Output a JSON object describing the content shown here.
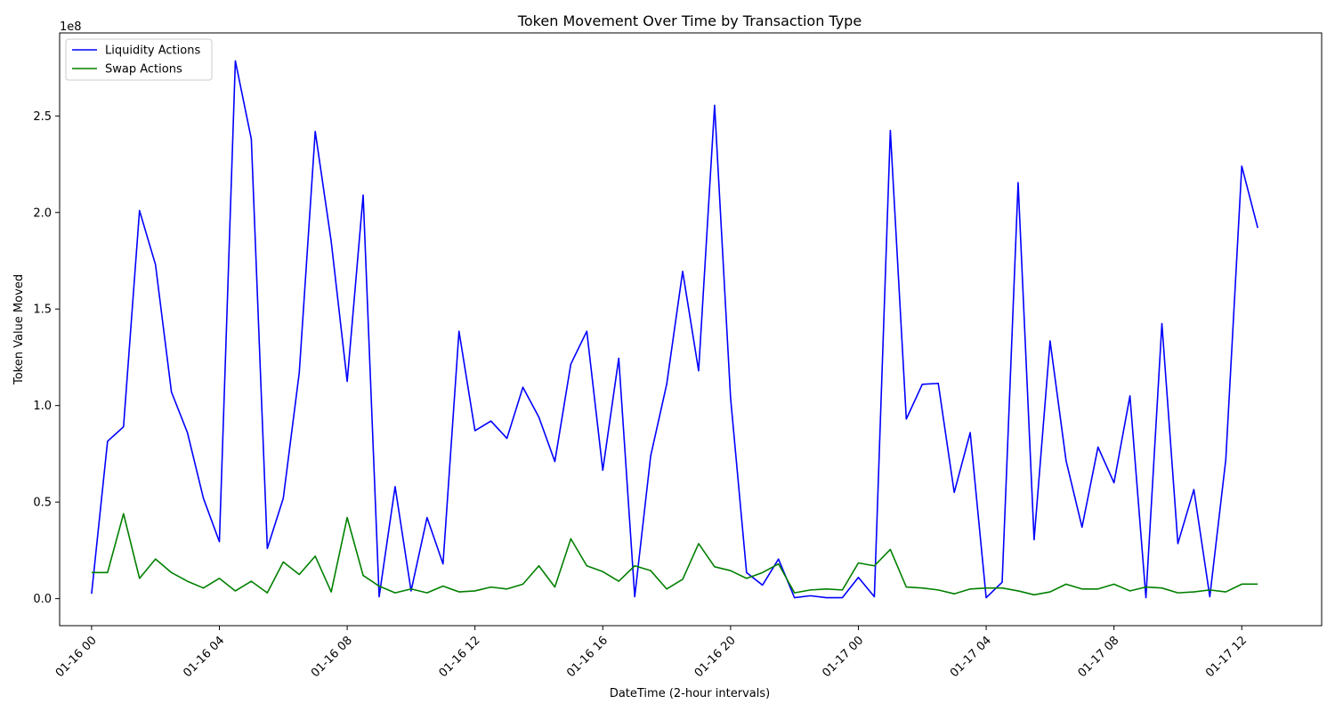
{
  "chart_data": {
    "type": "line",
    "title": "Token Movement Over Time by Transaction Type",
    "xlabel": "DateTime (2-hour intervals)",
    "ylabel": "Token Value Moved",
    "y_offset_label": "1e8",
    "ylim": [
      -0.14,
      2.93
    ],
    "xlim_hours": [
      -1.0,
      38.5
    ],
    "grid": false,
    "legend_position": "top-left",
    "x_ticks": [
      {
        "label": "01-16 00",
        "hour": 0
      },
      {
        "label": "01-16 04",
        "hour": 4
      },
      {
        "label": "01-16 08",
        "hour": 8
      },
      {
        "label": "01-16 12",
        "hour": 12
      },
      {
        "label": "01-16 16",
        "hour": 16
      },
      {
        "label": "01-16 20",
        "hour": 20
      },
      {
        "label": "01-17 00",
        "hour": 24
      },
      {
        "label": "01-17 04",
        "hour": 28
      },
      {
        "label": "01-17 08",
        "hour": 32
      },
      {
        "label": "01-17 12",
        "hour": 36
      }
    ],
    "y_ticks": [
      {
        "label": "0.0",
        "value": 0.0
      },
      {
        "label": "0.5",
        "value": 0.5
      },
      {
        "label": "1.0",
        "value": 1.0
      },
      {
        "label": "1.5",
        "value": 1.5
      },
      {
        "label": "2.0",
        "value": 2.0
      },
      {
        "label": "2.5",
        "value": 2.5
      }
    ],
    "x": [
      0,
      0.5,
      1,
      1.5,
      2,
      2.5,
      3,
      3.5,
      4,
      4.5,
      5,
      5.5,
      6,
      6.5,
      7,
      7.5,
      8,
      8.5,
      9,
      9.5,
      10,
      10.5,
      11,
      11.5,
      12,
      12.5,
      13,
      13.5,
      14,
      14.5,
      15,
      15.5,
      16,
      16.5,
      17,
      17.5,
      18,
      18.5,
      19,
      19.5,
      20,
      20.5,
      21,
      21.5,
      22,
      22.5,
      23,
      23.5,
      24,
      24.5,
      25,
      25.5,
      26,
      26.5,
      27,
      27.5,
      28,
      28.5,
      29,
      29.5,
      30,
      30.5,
      31,
      31.5,
      32,
      32.5,
      33,
      33.5,
      34,
      34.5,
      35,
      35.5,
      36,
      36.5
    ],
    "series": [
      {
        "name": "Liquidity Actions",
        "color": "#0000ff",
        "values": [
          0.025,
          0.815,
          0.89,
          2.01,
          1.73,
          1.07,
          0.86,
          0.52,
          0.295,
          2.785,
          2.38,
          0.26,
          0.52,
          1.17,
          2.42,
          1.85,
          1.125,
          2.09,
          0.01,
          0.58,
          0.04,
          0.42,
          0.18,
          1.385,
          0.87,
          0.92,
          0.83,
          1.095,
          0.94,
          0.71,
          1.215,
          1.385,
          0.665,
          1.245,
          0.01,
          0.74,
          1.11,
          1.695,
          1.18,
          2.555,
          1.04,
          0.135,
          0.07,
          0.205,
          0.005,
          0.015,
          0.005,
          0.005,
          0.11,
          0.01,
          2.425,
          0.93,
          1.11,
          1.115,
          0.55,
          0.86,
          0.005,
          0.085,
          2.155,
          0.305,
          1.335,
          0.715,
          0.37,
          0.785,
          0.6,
          1.05,
          0.005,
          1.425,
          0.285,
          0.565,
          0.01,
          0.72,
          2.24,
          1.92
        ]
      },
      {
        "name": "Swap Actions",
        "color": "#008000",
        "values": [
          0.135,
          0.135,
          0.44,
          0.105,
          0.205,
          0.135,
          0.09,
          0.055,
          0.105,
          0.04,
          0.09,
          0.03,
          0.19,
          0.125,
          0.22,
          0.035,
          0.42,
          0.12,
          0.065,
          0.03,
          0.05,
          0.03,
          0.065,
          0.035,
          0.04,
          0.06,
          0.05,
          0.075,
          0.17,
          0.06,
          0.31,
          0.17,
          0.14,
          0.09,
          0.17,
          0.145,
          0.05,
          0.1,
          0.285,
          0.165,
          0.145,
          0.105,
          0.135,
          0.18,
          0.03,
          0.045,
          0.05,
          0.045,
          0.185,
          0.17,
          0.255,
          0.06,
          0.055,
          0.045,
          0.025,
          0.05,
          0.055,
          0.055,
          0.04,
          0.02,
          0.035,
          0.075,
          0.05,
          0.05,
          0.075,
          0.04,
          0.06,
          0.055,
          0.03,
          0.035,
          0.045,
          0.035,
          0.075,
          0.075
        ]
      }
    ]
  }
}
